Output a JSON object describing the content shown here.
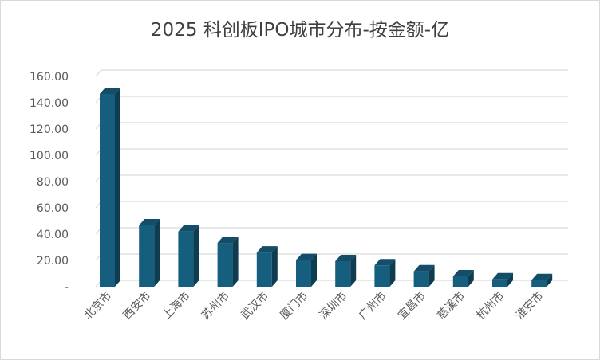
{
  "chart_data": {
    "type": "bar",
    "title": "2025 科创板IPO城市分布-按金额-亿",
    "categories": [
      "北京市",
      "西安市",
      "上海市",
      "苏州市",
      "武汉市",
      "厦门市",
      "深圳市",
      "广州市",
      "宜昌市",
      "慈溪市",
      "杭州市",
      "淮安市"
    ],
    "values": [
      146.7,
      46.7,
      42.0,
      33.3,
      26.0,
      20.2,
      19.4,
      16.2,
      11.7,
      7.9,
      5.6,
      5.0
    ],
    "yticks": [
      {
        "value": 0,
        "label": "-"
      },
      {
        "value": 20,
        "label": "20.00"
      },
      {
        "value": 40,
        "label": "40.00"
      },
      {
        "value": 60,
        "label": "60.00"
      },
      {
        "value": 80,
        "label": "80.00"
      },
      {
        "value": 100,
        "label": "100.00"
      },
      {
        "value": 120,
        "label": "120.00"
      },
      {
        "value": 140,
        "label": "140.00"
      },
      {
        "value": 160,
        "label": "160.00"
      }
    ],
    "ylim": [
      0,
      160
    ],
    "xlabel": "",
    "ylabel": "",
    "grid": true,
    "legend": "none",
    "colors": {
      "front": "#165e7e",
      "side": "#0e3d52",
      "top": "#134d67",
      "grid": "#d9d9d9"
    }
  }
}
